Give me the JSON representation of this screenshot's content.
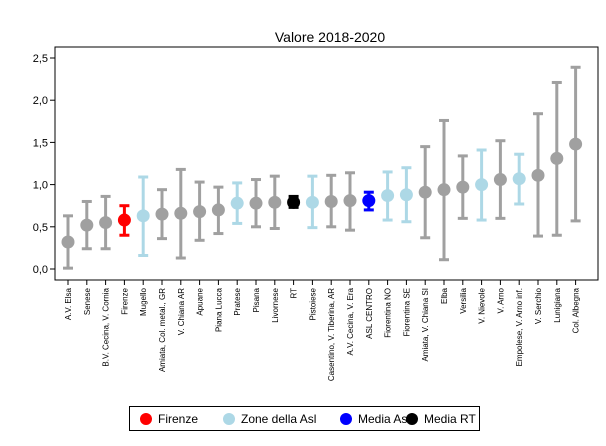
{
  "chart_data": {
    "type": "scatter",
    "title": "Valore 2018-2020",
    "xlabel": "",
    "ylabel": "",
    "ylim": [
      0,
      2.6
    ],
    "yticks": [
      "0,0",
      "0,5",
      "1,0",
      "1,5",
      "2,0",
      "2,5"
    ],
    "grid": false,
    "legend_position": "bottom",
    "colors": {
      "Altre zone": "#a0a0a0",
      "Firenze": "#ff0000",
      "Zone della Asl": "#add8e6",
      "Media Asl": "#0000ff",
      "Media RT": "#000000"
    },
    "legend": [
      {
        "label": "Firenze",
        "color": "#ff0000"
      },
      {
        "label": "Zone della Asl",
        "color": "#add8e6"
      },
      {
        "label": "Media Asl",
        "color": "#0000ff"
      },
      {
        "label": "Media RT",
        "color": "#000000"
      }
    ],
    "points": [
      {
        "label": "A.V. Elsa",
        "value": 0.32,
        "lower": 0.01,
        "upper": 0.63,
        "group": "Altre zone"
      },
      {
        "label": "Senese",
        "value": 0.52,
        "lower": 0.24,
        "upper": 0.8,
        "group": "Altre zone"
      },
      {
        "label": "B.V. Cecina, V. Cornia",
        "value": 0.55,
        "lower": 0.24,
        "upper": 0.86,
        "group": "Altre zone"
      },
      {
        "label": "Firenze",
        "value": 0.58,
        "lower": 0.4,
        "upper": 0.75,
        "group": "Firenze"
      },
      {
        "label": "Mugello",
        "value": 0.63,
        "lower": 0.16,
        "upper": 1.09,
        "group": "Zone della Asl"
      },
      {
        "label": "Amiata, Col. metal., GR",
        "value": 0.65,
        "lower": 0.36,
        "upper": 0.94,
        "group": "Altre zone"
      },
      {
        "label": "V. Chiana AR",
        "value": 0.66,
        "lower": 0.13,
        "upper": 1.18,
        "group": "Altre zone"
      },
      {
        "label": "Apuane",
        "value": 0.68,
        "lower": 0.34,
        "upper": 1.03,
        "group": "Altre zone"
      },
      {
        "label": "Piana Lucca",
        "value": 0.7,
        "lower": 0.42,
        "upper": 0.97,
        "group": "Altre zone"
      },
      {
        "label": "Pratese",
        "value": 0.78,
        "lower": 0.54,
        "upper": 1.02,
        "group": "Zone della Asl"
      },
      {
        "label": "Pisana",
        "value": 0.78,
        "lower": 0.5,
        "upper": 1.06,
        "group": "Altre zone"
      },
      {
        "label": "Livornese",
        "value": 0.79,
        "lower": 0.48,
        "upper": 1.1,
        "group": "Altre zone"
      },
      {
        "label": "RT",
        "value": 0.79,
        "lower": 0.73,
        "upper": 0.86,
        "group": "Media RT"
      },
      {
        "label": "Pistoiese",
        "value": 0.79,
        "lower": 0.49,
        "upper": 1.1,
        "group": "Zone della Asl"
      },
      {
        "label": "Casentino, V. Tiberina, AR",
        "value": 0.8,
        "lower": 0.5,
        "upper": 1.11,
        "group": "Altre zone"
      },
      {
        "label": "A.V. Cecina, V. Era",
        "value": 0.81,
        "lower": 0.46,
        "upper": 1.14,
        "group": "Altre zone"
      },
      {
        "label": "ASL CENTRO",
        "value": 0.81,
        "lower": 0.7,
        "upper": 0.91,
        "group": "Media Asl"
      },
      {
        "label": "Fiorentina NO",
        "value": 0.87,
        "lower": 0.58,
        "upper": 1.15,
        "group": "Zone della Asl"
      },
      {
        "label": "Fiorentina SE",
        "value": 0.88,
        "lower": 0.56,
        "upper": 1.2,
        "group": "Zone della Asl"
      },
      {
        "label": "Amiata, V. Chiana SI",
        "value": 0.91,
        "lower": 0.37,
        "upper": 1.45,
        "group": "Altre zone"
      },
      {
        "label": "Elba",
        "value": 0.94,
        "lower": 0.11,
        "upper": 1.76,
        "group": "Altre zone"
      },
      {
        "label": "Versilia",
        "value": 0.97,
        "lower": 0.6,
        "upper": 1.34,
        "group": "Altre zone"
      },
      {
        "label": "V. Nievole",
        "value": 1.0,
        "lower": 0.58,
        "upper": 1.41,
        "group": "Zone della Asl"
      },
      {
        "label": "V. Arno",
        "value": 1.06,
        "lower": 0.6,
        "upper": 1.52,
        "group": "Altre zone"
      },
      {
        "label": "Empolese, V. Arno inf.",
        "value": 1.07,
        "lower": 0.77,
        "upper": 1.36,
        "group": "Zone della Asl"
      },
      {
        "label": "V. Serchio",
        "value": 1.11,
        "lower": 0.39,
        "upper": 1.84,
        "group": "Altre zone"
      },
      {
        "label": "Lunigiana",
        "value": 1.31,
        "lower": 0.4,
        "upper": 2.21,
        "group": "Altre zone"
      },
      {
        "label": "Col. Albegna",
        "value": 1.48,
        "lower": 0.57,
        "upper": 2.39,
        "group": "Altre zone"
      }
    ]
  }
}
